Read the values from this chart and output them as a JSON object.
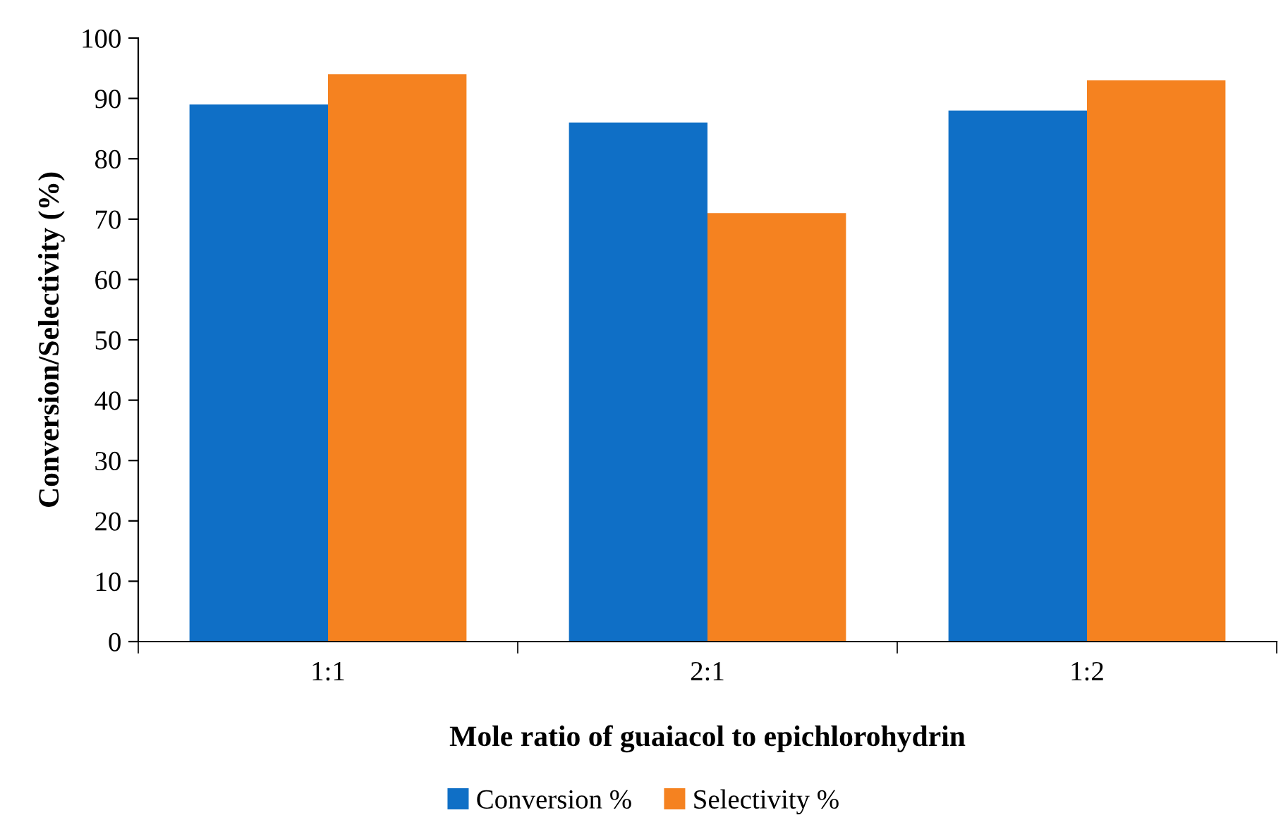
{
  "chart_data": {
    "type": "bar",
    "xlabel": "Mole ratio of guaiacol to epichlorohydrin",
    "ylabel": "Conversion/Selectivity (%)",
    "categories": [
      "1:1",
      "2:1",
      "1:2"
    ],
    "series": [
      {
        "name": "Conversion %",
        "color": "#0f6fc6",
        "values": [
          89,
          86,
          88
        ]
      },
      {
        "name": "Selectivity %",
        "color": "#f58220",
        "values": [
          94,
          71,
          93
        ]
      }
    ],
    "ylim": [
      0,
      100
    ],
    "yticks": [
      0,
      10,
      20,
      30,
      40,
      50,
      60,
      70,
      80,
      90,
      100
    ],
    "grid": false,
    "legend": "bottom"
  }
}
